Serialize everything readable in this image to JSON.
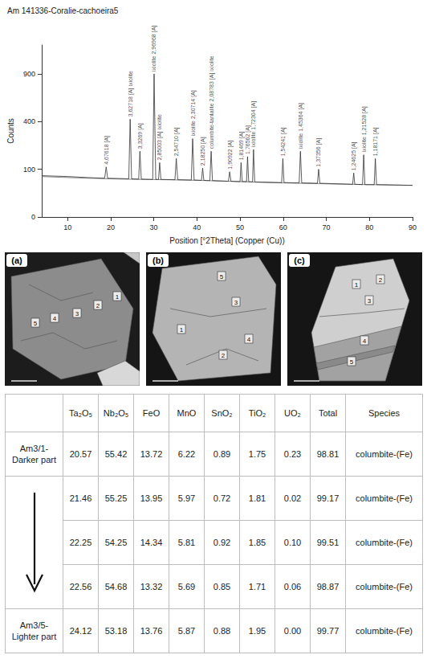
{
  "chart_data": {
    "type": "line",
    "title": "Am 141336-Coralie-cachoeira5",
    "xlabel": "Position [°2Theta] (Copper (Cu))",
    "ylabel": "Counts",
    "x": [
      4,
      10,
      15,
      18.6,
      18.96,
      19.3,
      22,
      24.2,
      24.52,
      24.85,
      26.5,
      26.78,
      27.1,
      29.75,
      30.07,
      30.45,
      31.1,
      31.36,
      31.65,
      34.9,
      35.21,
      35.55,
      38.7,
      39.01,
      39.35,
      41.05,
      41.33,
      41.6,
      43.0,
      43.3,
      43.6,
      47.3,
      47.59,
      47.9,
      50.0,
      50.24,
      50.5,
      51.5,
      51.74,
      52.0,
      52.9,
      53.12,
      53.4,
      59.65,
      59.93,
      60.2,
      63.7,
      64.0,
      64.3,
      67.95,
      68.22,
      68.5,
      76.1,
      76.36,
      76.6,
      78.4,
      78.67,
      78.95,
      81.1,
      81.37,
      81.65,
      90
    ],
    "values": [
      75,
      72,
      68,
      66,
      110,
      66,
      65,
      64,
      420,
      64,
      63,
      190,
      63,
      62,
      900,
      62,
      62,
      130,
      62,
      61,
      150,
      61,
      60,
      270,
      60,
      59,
      105,
      59,
      58,
      190,
      58,
      56,
      90,
      56,
      55,
      130,
      55,
      55,
      160,
      55,
      54,
      200,
      54,
      52,
      150,
      52,
      51,
      190,
      51,
      50,
      100,
      50,
      47,
      85,
      47,
      46,
      170,
      46,
      46,
      150,
      46,
      44
    ],
    "color": "#333333",
    "background": {
      "x": [
        4,
        20,
        40,
        60,
        90
      ],
      "values": [
        72,
        64,
        59,
        51,
        44
      ],
      "color": "#666666"
    },
    "peak_labels": [
      {
        "x": 18.96,
        "label": "4,67618 [A]"
      },
      {
        "x": 24.52,
        "label": "3,62718 [A] ixiolite"
      },
      {
        "x": 26.78,
        "label": "3,3269 [A]"
      },
      {
        "x": 30.07,
        "label": "ixiolite 2,96968 [A]"
      },
      {
        "x": 31.36,
        "label": "2,85003 [A] ixiolite"
      },
      {
        "x": 35.21,
        "label": "2,54710 [A]"
      },
      {
        "x": 39.01,
        "label": "ixiolite 2,30714 [A]"
      },
      {
        "x": 41.33,
        "label": "2,18250 [A]"
      },
      {
        "x": 43.3,
        "label": "columbite-tantalite 2,08783 [A] ixiolite"
      },
      {
        "x": 47.59,
        "label": "1,90922 [A]"
      },
      {
        "x": 50.24,
        "label": "1,81469 [A]"
      },
      {
        "x": 51.74,
        "label": "1,76562 [A]"
      },
      {
        "x": 53.12,
        "label": "ixiolite 1,72304 [A]"
      },
      {
        "x": 59.93,
        "label": "1,54241 [A]"
      },
      {
        "x": 64.0,
        "label": "ixiolite 1,45364 [A]"
      },
      {
        "x": 68.22,
        "label": "1,37356 [A]"
      },
      {
        "x": 76.36,
        "label": "1,24625 [A]"
      },
      {
        "x": 78.67,
        "label": "ixiolite 1,21528 [A]"
      },
      {
        "x": 81.37,
        "label": "1,18171 [A]"
      }
    ],
    "xlim": [
      4,
      90
    ],
    "xticks": [
      10,
      20,
      30,
      40,
      50,
      60,
      70,
      80,
      90
    ],
    "ylim": [
      0,
      1300
    ],
    "yticks": [
      0,
      100,
      400,
      900
    ],
    "grid": false
  },
  "images": [
    {
      "letter": "(a)",
      "spots": [
        "1",
        "2",
        "3",
        "4",
        "5"
      ]
    },
    {
      "letter": "(b)",
      "spots": [
        "1",
        "2",
        "3",
        "4",
        "5"
      ]
    },
    {
      "letter": "(c)",
      "spots": [
        "1",
        "2",
        "3",
        "4",
        "5"
      ]
    }
  ],
  "table": {
    "columns": [
      "Ta₂O₅",
      "Nb₂O₅",
      "FeO",
      "MnO",
      "SnO₂",
      "TiO₂",
      "UO₂",
      "Total",
      "Species"
    ],
    "rows": [
      {
        "label": "Am3/1-Darker part",
        "cells": [
          "20.57",
          "55.42",
          "13.72",
          "6.22",
          "0.89",
          "1.75",
          "0.23",
          "98.81",
          "columbite-(Fe)"
        ]
      },
      {
        "label": null,
        "cells": [
          "21.46",
          "55.25",
          "13.95",
          "5.97",
          "0.72",
          "1.81",
          "0.02",
          "99.17",
          "columbite-(Fe)"
        ]
      },
      {
        "label": null,
        "cells": [
          "22.25",
          "54.25",
          "14.34",
          "5.81",
          "0.92",
          "1.85",
          "0.10",
          "99.51",
          "columbite-(Fe)"
        ]
      },
      {
        "label": null,
        "cells": [
          "22.56",
          "54.68",
          "13.32",
          "5.69",
          "0.85",
          "1.71",
          "0.06",
          "98.87",
          "columbite-(Fe)"
        ]
      },
      {
        "label": "Am3/5-Lighter part",
        "cells": [
          "24.12",
          "53.18",
          "13.76",
          "5.87",
          "0.88",
          "1.95",
          "0.00",
          "99.77",
          "columbite-(Fe)"
        ]
      }
    ]
  }
}
